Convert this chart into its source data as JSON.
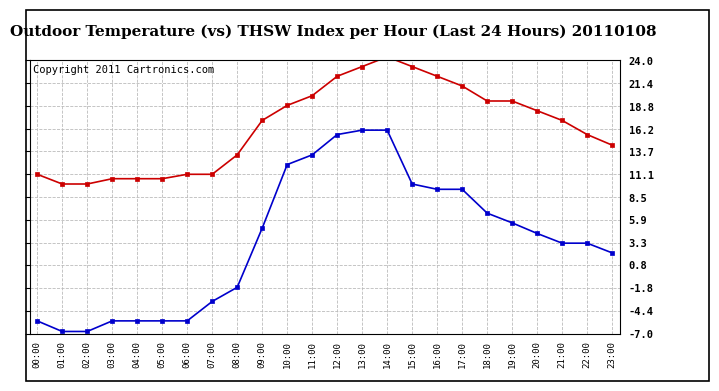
{
  "title": "Outdoor Temperature (vs) THSW Index per Hour (Last 24 Hours) 20110108",
  "copyright": "Copyright 2011 Cartronics.com",
  "hours": [
    "00:00",
    "01:00",
    "02:00",
    "03:00",
    "04:00",
    "05:00",
    "06:00",
    "07:00",
    "08:00",
    "09:00",
    "10:00",
    "11:00",
    "12:00",
    "13:00",
    "14:00",
    "15:00",
    "16:00",
    "17:00",
    "18:00",
    "19:00",
    "20:00",
    "21:00",
    "22:00",
    "23:00"
  ],
  "temp_red": [
    11.1,
    10.0,
    10.0,
    10.6,
    10.6,
    10.6,
    11.1,
    11.1,
    13.3,
    17.2,
    18.9,
    20.0,
    22.2,
    23.3,
    24.4,
    23.3,
    22.2,
    21.1,
    19.4,
    19.4,
    18.3,
    17.2,
    15.6,
    14.4
  ],
  "thsw_blue": [
    -5.5,
    -6.7,
    -6.7,
    -5.5,
    -5.5,
    -5.5,
    -5.5,
    -3.3,
    -1.7,
    5.0,
    12.2,
    13.3,
    15.6,
    16.1,
    16.1,
    10.0,
    9.4,
    9.4,
    6.7,
    5.6,
    4.4,
    3.3,
    3.3,
    2.2
  ],
  "yticks_right": [
    24.0,
    21.4,
    18.8,
    16.2,
    13.7,
    11.1,
    8.5,
    5.9,
    3.3,
    0.8,
    -1.8,
    -4.4,
    -7.0
  ],
  "ylim": [
    -7.0,
    24.0
  ],
  "red_color": "#cc0000",
  "blue_color": "#0000cc",
  "grid_color": "#bbbbbb",
  "bg_color": "#ffffff",
  "title_fontsize": 11,
  "copyright_fontsize": 7.5
}
